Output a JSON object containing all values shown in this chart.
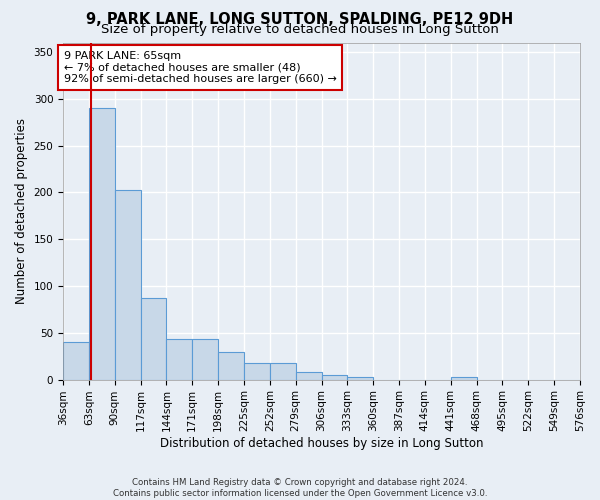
{
  "title": "9, PARK LANE, LONG SUTTON, SPALDING, PE12 9DH",
  "subtitle": "Size of property relative to detached houses in Long Sutton",
  "xlabel": "Distribution of detached houses by size in Long Sutton",
  "ylabel": "Number of detached properties",
  "bar_color": "#c8d8e8",
  "bar_edge_color": "#5b9bd5",
  "vline_color": "#cc0000",
  "vline_x": 65,
  "annotation_text": "9 PARK LANE: 65sqm\n← 7% of detached houses are smaller (48)\n92% of semi-detached houses are larger (660) →",
  "annotation_box_color": "#ffffff",
  "annotation_box_edge": "#cc0000",
  "bin_edges": [
    36,
    63,
    90,
    117,
    144,
    171,
    198,
    225,
    252,
    279,
    306,
    333,
    360,
    387,
    414,
    441,
    468,
    495,
    522,
    549,
    576
  ],
  "bar_heights": [
    40,
    290,
    203,
    87,
    43,
    43,
    30,
    18,
    18,
    8,
    5,
    3,
    0,
    0,
    0,
    3,
    0,
    0,
    0,
    0
  ],
  "ylim": [
    0,
    360
  ],
  "yticks": [
    0,
    50,
    100,
    150,
    200,
    250,
    300,
    350
  ],
  "background_color": "#e8eef5",
  "plot_bg_color": "#e8eef5",
  "grid_color": "#ffffff",
  "footnote": "Contains HM Land Registry data © Crown copyright and database right 2024.\nContains public sector information licensed under the Open Government Licence v3.0.",
  "title_fontsize": 10.5,
  "subtitle_fontsize": 9.5,
  "xlabel_fontsize": 8.5,
  "ylabel_fontsize": 8.5,
  "tick_fontsize": 7.5,
  "annotation_fontsize": 8
}
